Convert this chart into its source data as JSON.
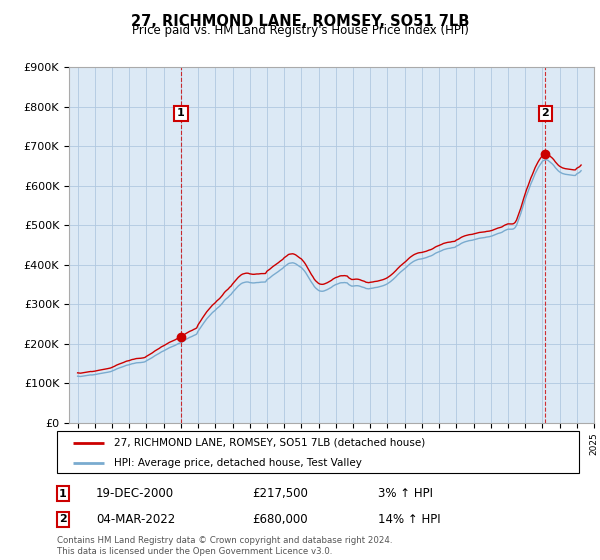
{
  "title": "27, RICHMOND LANE, ROMSEY, SO51 7LB",
  "subtitle": "Price paid vs. HM Land Registry's House Price Index (HPI)",
  "ylabel_ticks": [
    "£0",
    "£100K",
    "£200K",
    "£300K",
    "£400K",
    "£500K",
    "£600K",
    "£700K",
    "£800K",
    "£900K"
  ],
  "ylim": [
    0,
    900000
  ],
  "ytick_vals": [
    0,
    100000,
    200000,
    300000,
    400000,
    500000,
    600000,
    700000,
    800000,
    900000
  ],
  "x_start_year": 1995,
  "x_end_year": 2025,
  "legend_line1": "27, RICHMOND LANE, ROMSEY, SO51 7LB (detached house)",
  "legend_line2": "HPI: Average price, detached house, Test Valley",
  "annotation1_label": "1",
  "annotation1_text": "19-DEC-2000",
  "annotation1_price": "£217,500",
  "annotation1_hpi": "3% ↑ HPI",
  "annotation1_year": 2001.0,
  "annotation1_value": 217500,
  "annotation2_label": "2",
  "annotation2_text": "04-MAR-2022",
  "annotation2_price": "£680,000",
  "annotation2_hpi": "14% ↑ HPI",
  "annotation2_year": 2022.2,
  "annotation2_value": 680000,
  "line_color_red": "#cc0000",
  "line_color_blue": "#7aabcf",
  "chart_bg_color": "#dce9f5",
  "background_color": "#ffffff",
  "grid_color": "#b0c8e0",
  "footer_text": "Contains HM Land Registry data © Crown copyright and database right 2024.\nThis data is licensed under the Open Government Licence v3.0.",
  "hpi_data": {
    "years": [
      1995.0,
      1995.083,
      1995.167,
      1995.25,
      1995.333,
      1995.417,
      1995.5,
      1995.583,
      1995.667,
      1995.75,
      1995.833,
      1995.917,
      1996.0,
      1996.083,
      1996.167,
      1996.25,
      1996.333,
      1996.417,
      1996.5,
      1996.583,
      1996.667,
      1996.75,
      1996.833,
      1996.917,
      1997.0,
      1997.083,
      1997.167,
      1997.25,
      1997.333,
      1997.417,
      1997.5,
      1997.583,
      1997.667,
      1997.75,
      1997.833,
      1997.917,
      1998.0,
      1998.083,
      1998.167,
      1998.25,
      1998.333,
      1998.417,
      1998.5,
      1998.583,
      1998.667,
      1998.75,
      1998.833,
      1998.917,
      1999.0,
      1999.083,
      1999.167,
      1999.25,
      1999.333,
      1999.417,
      1999.5,
      1999.583,
      1999.667,
      1999.75,
      1999.833,
      1999.917,
      2000.0,
      2000.083,
      2000.167,
      2000.25,
      2000.333,
      2000.417,
      2000.5,
      2000.583,
      2000.667,
      2000.75,
      2000.833,
      2000.917,
      2001.0,
      2001.083,
      2001.167,
      2001.25,
      2001.333,
      2001.417,
      2001.5,
      2001.583,
      2001.667,
      2001.75,
      2001.833,
      2001.917,
      2002.0,
      2002.083,
      2002.167,
      2002.25,
      2002.333,
      2002.417,
      2002.5,
      2002.583,
      2002.667,
      2002.75,
      2002.833,
      2002.917,
      2003.0,
      2003.083,
      2003.167,
      2003.25,
      2003.333,
      2003.417,
      2003.5,
      2003.583,
      2003.667,
      2003.75,
      2003.833,
      2003.917,
      2004.0,
      2004.083,
      2004.167,
      2004.25,
      2004.333,
      2004.417,
      2004.5,
      2004.583,
      2004.667,
      2004.75,
      2004.833,
      2004.917,
      2005.0,
      2005.083,
      2005.167,
      2005.25,
      2005.333,
      2005.417,
      2005.5,
      2005.583,
      2005.667,
      2005.75,
      2005.833,
      2005.917,
      2006.0,
      2006.083,
      2006.167,
      2006.25,
      2006.333,
      2006.417,
      2006.5,
      2006.583,
      2006.667,
      2006.75,
      2006.833,
      2006.917,
      2007.0,
      2007.083,
      2007.167,
      2007.25,
      2007.333,
      2007.417,
      2007.5,
      2007.583,
      2007.667,
      2007.75,
      2007.833,
      2007.917,
      2008.0,
      2008.083,
      2008.167,
      2008.25,
      2008.333,
      2008.417,
      2008.5,
      2008.583,
      2008.667,
      2008.75,
      2008.833,
      2008.917,
      2009.0,
      2009.083,
      2009.167,
      2009.25,
      2009.333,
      2009.417,
      2009.5,
      2009.583,
      2009.667,
      2009.75,
      2009.833,
      2009.917,
      2010.0,
      2010.083,
      2010.167,
      2010.25,
      2010.333,
      2010.417,
      2010.5,
      2010.583,
      2010.667,
      2010.75,
      2010.833,
      2010.917,
      2011.0,
      2011.083,
      2011.167,
      2011.25,
      2011.333,
      2011.417,
      2011.5,
      2011.583,
      2011.667,
      2011.75,
      2011.833,
      2011.917,
      2012.0,
      2012.083,
      2012.167,
      2012.25,
      2012.333,
      2012.417,
      2012.5,
      2012.583,
      2012.667,
      2012.75,
      2012.833,
      2012.917,
      2013.0,
      2013.083,
      2013.167,
      2013.25,
      2013.333,
      2013.417,
      2013.5,
      2013.583,
      2013.667,
      2013.75,
      2013.833,
      2013.917,
      2014.0,
      2014.083,
      2014.167,
      2014.25,
      2014.333,
      2014.417,
      2014.5,
      2014.583,
      2014.667,
      2014.75,
      2014.833,
      2014.917,
      2015.0,
      2015.083,
      2015.167,
      2015.25,
      2015.333,
      2015.417,
      2015.5,
      2015.583,
      2015.667,
      2015.75,
      2015.833,
      2015.917,
      2016.0,
      2016.083,
      2016.167,
      2016.25,
      2016.333,
      2016.417,
      2016.5,
      2016.583,
      2016.667,
      2016.75,
      2016.833,
      2016.917,
      2017.0,
      2017.083,
      2017.167,
      2017.25,
      2017.333,
      2017.417,
      2017.5,
      2017.583,
      2017.667,
      2017.75,
      2017.833,
      2017.917,
      2018.0,
      2018.083,
      2018.167,
      2018.25,
      2018.333,
      2018.417,
      2018.5,
      2018.583,
      2018.667,
      2018.75,
      2018.833,
      2018.917,
      2019.0,
      2019.083,
      2019.167,
      2019.25,
      2019.333,
      2019.417,
      2019.5,
      2019.583,
      2019.667,
      2019.75,
      2019.833,
      2019.917,
      2020.0,
      2020.083,
      2020.167,
      2020.25,
      2020.333,
      2020.417,
      2020.5,
      2020.583,
      2020.667,
      2020.75,
      2020.833,
      2020.917,
      2021.0,
      2021.083,
      2021.167,
      2021.25,
      2021.333,
      2021.417,
      2021.5,
      2021.583,
      2021.667,
      2021.75,
      2021.833,
      2021.917,
      2022.0,
      2022.083,
      2022.167,
      2022.25,
      2022.333,
      2022.417,
      2022.5,
      2022.583,
      2022.667,
      2022.75,
      2022.833,
      2022.917,
      2023.0,
      2023.083,
      2023.167,
      2023.25,
      2023.333,
      2023.417,
      2023.5,
      2023.583,
      2023.667,
      2023.75,
      2023.833,
      2023.917,
      2024.0,
      2024.083,
      2024.167,
      2024.25
    ],
    "values": [
      118000,
      117500,
      117200,
      117800,
      118500,
      119200,
      119800,
      120300,
      120800,
      121200,
      121000,
      121500,
      122000,
      122800,
      123500,
      124200,
      124800,
      125500,
      126200,
      126800,
      127300,
      128000,
      128800,
      129500,
      131000,
      132500,
      134000,
      136000,
      137500,
      138800,
      140000,
      141200,
      142500,
      144000,
      145500,
      146200,
      147000,
      148200,
      149500,
      150000,
      151000,
      151800,
      152000,
      152200,
      152500,
      153000,
      153500,
      154500,
      157000,
      159000,
      161000,
      163000,
      165000,
      167500,
      170000,
      172000,
      174000,
      176000,
      178500,
      180500,
      182000,
      184000,
      186000,
      188000,
      190000,
      191500,
      193000,
      194500,
      196000,
      198000,
      200000,
      201500,
      203000,
      205000,
      207500,
      210000,
      212000,
      214000,
      216000,
      217500,
      219000,
      221000,
      222500,
      224500,
      232000,
      237000,
      242500,
      248000,
      253000,
      258000,
      263000,
      267000,
      271000,
      275000,
      279000,
      282000,
      285000,
      289000,
      292000,
      295000,
      299000,
      303000,
      308000,
      312000,
      315000,
      318000,
      322000,
      325000,
      330000,
      334000,
      338000,
      342000,
      346000,
      349000,
      352000,
      354000,
      355000,
      356000,
      356500,
      356200,
      355000,
      354500,
      354000,
      354000,
      354500,
      355000,
      355000,
      355500,
      356000,
      356000,
      356200,
      356500,
      362000,
      364500,
      367000,
      370000,
      373000,
      375500,
      378000,
      380500,
      383000,
      386000,
      388500,
      391000,
      395000,
      397500,
      400000,
      403000,
      404000,
      404500,
      405000,
      404000,
      402500,
      400000,
      397500,
      395000,
      393000,
      389000,
      385000,
      380000,
      374000,
      368000,
      362000,
      356000,
      351000,
      345000,
      341000,
      338000,
      335000,
      333500,
      333000,
      333000,
      334000,
      335500,
      337000,
      339000,
      341000,
      343000,
      346000,
      348000,
      350000,
      351000,
      352500,
      354000,
      354500,
      354500,
      355000,
      354500,
      354000,
      350000,
      348000,
      346000,
      346000,
      346500,
      347000,
      347000,
      346500,
      345500,
      344000,
      343000,
      342000,
      340000,
      339500,
      339000,
      340000,
      340500,
      341000,
      342000,
      342500,
      343000,
      344000,
      345000,
      346000,
      347000,
      348500,
      350000,
      352000,
      354500,
      357000,
      360000,
      363000,
      366500,
      370000,
      374000,
      377500,
      381000,
      384000,
      387000,
      390000,
      393000,
      396500,
      400000,
      403000,
      405500,
      408000,
      410000,
      411500,
      413000,
      414000,
      414500,
      415000,
      416000,
      417000,
      418000,
      419500,
      421000,
      422000,
      423500,
      425500,
      428000,
      430000,
      431500,
      433000,
      434500,
      436000,
      438000,
      439000,
      440000,
      441000,
      441500,
      442000,
      443000,
      443500,
      444000,
      447000,
      448500,
      450500,
      453000,
      455000,
      456500,
      458000,
      459000,
      460000,
      461000,
      461500,
      462000,
      463000,
      464000,
      465000,
      466000,
      467000,
      467500,
      468000,
      468500,
      469000,
      470000,
      470500,
      471000,
      472000,
      473000,
      474500,
      476000,
      477500,
      479000,
      480000,
      481000,
      482500,
      485000,
      487000,
      488500,
      490000,
      490000,
      490000,
      490000,
      491000,
      494000,
      500000,
      510000,
      520000,
      530000,
      542000,
      554000,
      565000,
      576000,
      585000,
      595000,
      605000,
      613000,
      622000,
      631000,
      638000,
      645000,
      651000,
      656000,
      662000,
      664000,
      665000,
      666000,
      664000,
      661000,
      658000,
      655000,
      651000,
      646000,
      642000,
      638000,
      635000,
      633000,
      631000,
      630000,
      629000,
      628500,
      628000,
      627500,
      627000,
      626500,
      626000,
      626000,
      630000,
      632000,
      634000,
      638000
    ]
  },
  "price_data": {
    "years": [
      2001.0,
      2022.167
    ],
    "values": [
      217500,
      680000
    ]
  }
}
